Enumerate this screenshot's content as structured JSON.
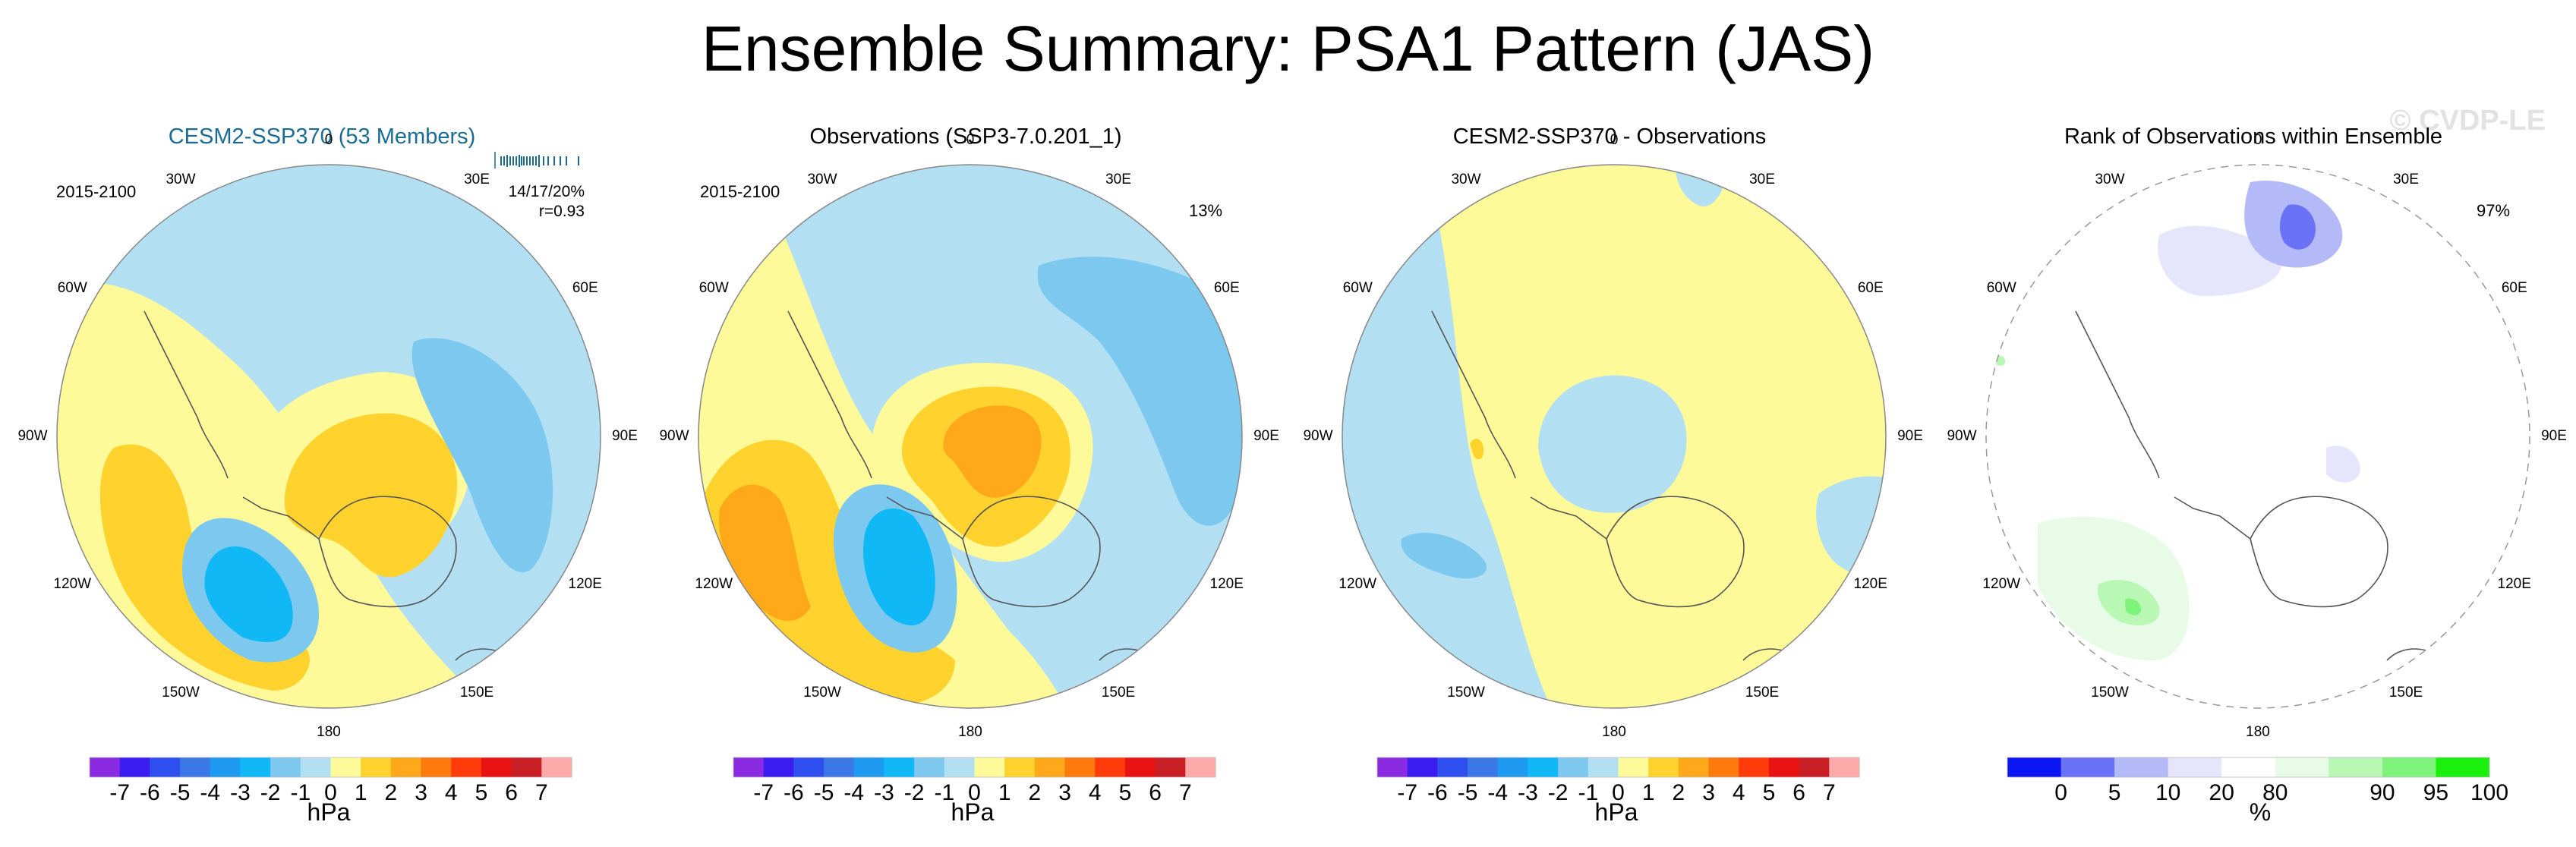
{
  "page": {
    "title": "Ensemble Summary: PSA1 Pattern (JAS)",
    "watermark": "© CVDP-LE"
  },
  "colors": {
    "title_blue": "#1a6c94",
    "fill_palette": [
      "#8a2be2",
      "#3b1cf0",
      "#2f4ff0",
      "#3a78e6",
      "#1e9bf0",
      "#10b8f5",
      "#7cc8ef",
      "#b3dff3",
      "#fefa9a",
      "#ffd22e",
      "#ffa81a",
      "#ff7a0c",
      "#ff3c0a",
      "#e81212",
      "#c81f26",
      "#ffaaaa"
    ],
    "rank_palette": [
      "#0b16f2",
      "#6a72f5",
      "#b4b9f8",
      "#e5e6fb",
      "#ffffff",
      "#e7fbe6",
      "#b8f7b4",
      "#7df37a",
      "#19f00c"
    ]
  },
  "lon_labels": [
    "0",
    "30E",
    "60E",
    "90E",
    "120E",
    "150E",
    "180",
    "150W",
    "120W",
    "90W",
    "60W",
    "30W"
  ],
  "panels": [
    {
      "title": "CESM2-SSP370 (53 Members)",
      "period": "2015-2100",
      "percent": "",
      "stats_line1": "14/17/20%",
      "stats_line2": "r=0.93"
    },
    {
      "title": "Observations (SSP3-7.0.201_1)",
      "period": "2015-2100",
      "percent": "13%"
    },
    {
      "title": "CESM2-SSP370 - Observations",
      "period": "",
      "percent": ""
    },
    {
      "title": "Rank of Observations within Ensemble",
      "period": "",
      "percent": "97%"
    }
  ],
  "colorbar_hpa": {
    "ticks": [
      "-7",
      "-6",
      "-5",
      "-4",
      "-3",
      "-2",
      "-1",
      "0",
      "1",
      "2",
      "3",
      "4",
      "5",
      "6",
      "7"
    ],
    "unit": "hPa"
  },
  "colorbar_rank": {
    "ticks": [
      "0",
      "5",
      "10",
      "20",
      "80",
      "90",
      "95",
      "100"
    ],
    "unit": "%"
  },
  "chart_data": [
    {
      "type": "heatmap",
      "title": "CESM2-SSP370 (53 Members)",
      "projection": "south polar stereographic",
      "units": "hPa",
      "levels": [
        -7,
        -6,
        -5,
        -4,
        -3,
        -2,
        -1,
        0,
        1,
        2,
        3,
        4,
        5,
        6,
        7
      ],
      "period": "2015-2100",
      "pattern_correlation": 0.93,
      "pc_variance_explained": "14/17/20%",
      "minimum_approx": -4,
      "maximum_approx": 3
    },
    {
      "type": "heatmap",
      "title": "Observations (SSP3-7.0.201_1)",
      "projection": "south polar stereographic",
      "units": "hPa",
      "levels": [
        -7,
        -6,
        -5,
        -4,
        -3,
        -2,
        -1,
        0,
        1,
        2,
        3,
        4,
        5,
        6,
        7
      ],
      "period": "2015-2100",
      "variance_explained": "13%",
      "minimum_approx": -4,
      "maximum_approx": 3
    },
    {
      "type": "heatmap",
      "title": "CESM2-SSP370 - Observations",
      "projection": "south polar stereographic",
      "units": "hPa",
      "levels": [
        -7,
        -6,
        -5,
        -4,
        -3,
        -2,
        -1,
        0,
        1,
        2,
        3,
        4,
        5,
        6,
        7
      ],
      "minimum_approx": -2,
      "maximum_approx": 2
    },
    {
      "type": "heatmap",
      "title": "Rank of Observations within Ensemble",
      "projection": "south polar stereographic",
      "units": "%",
      "levels": [
        0,
        5,
        10,
        20,
        80,
        90,
        95,
        100
      ],
      "area_percent": "97%"
    }
  ]
}
